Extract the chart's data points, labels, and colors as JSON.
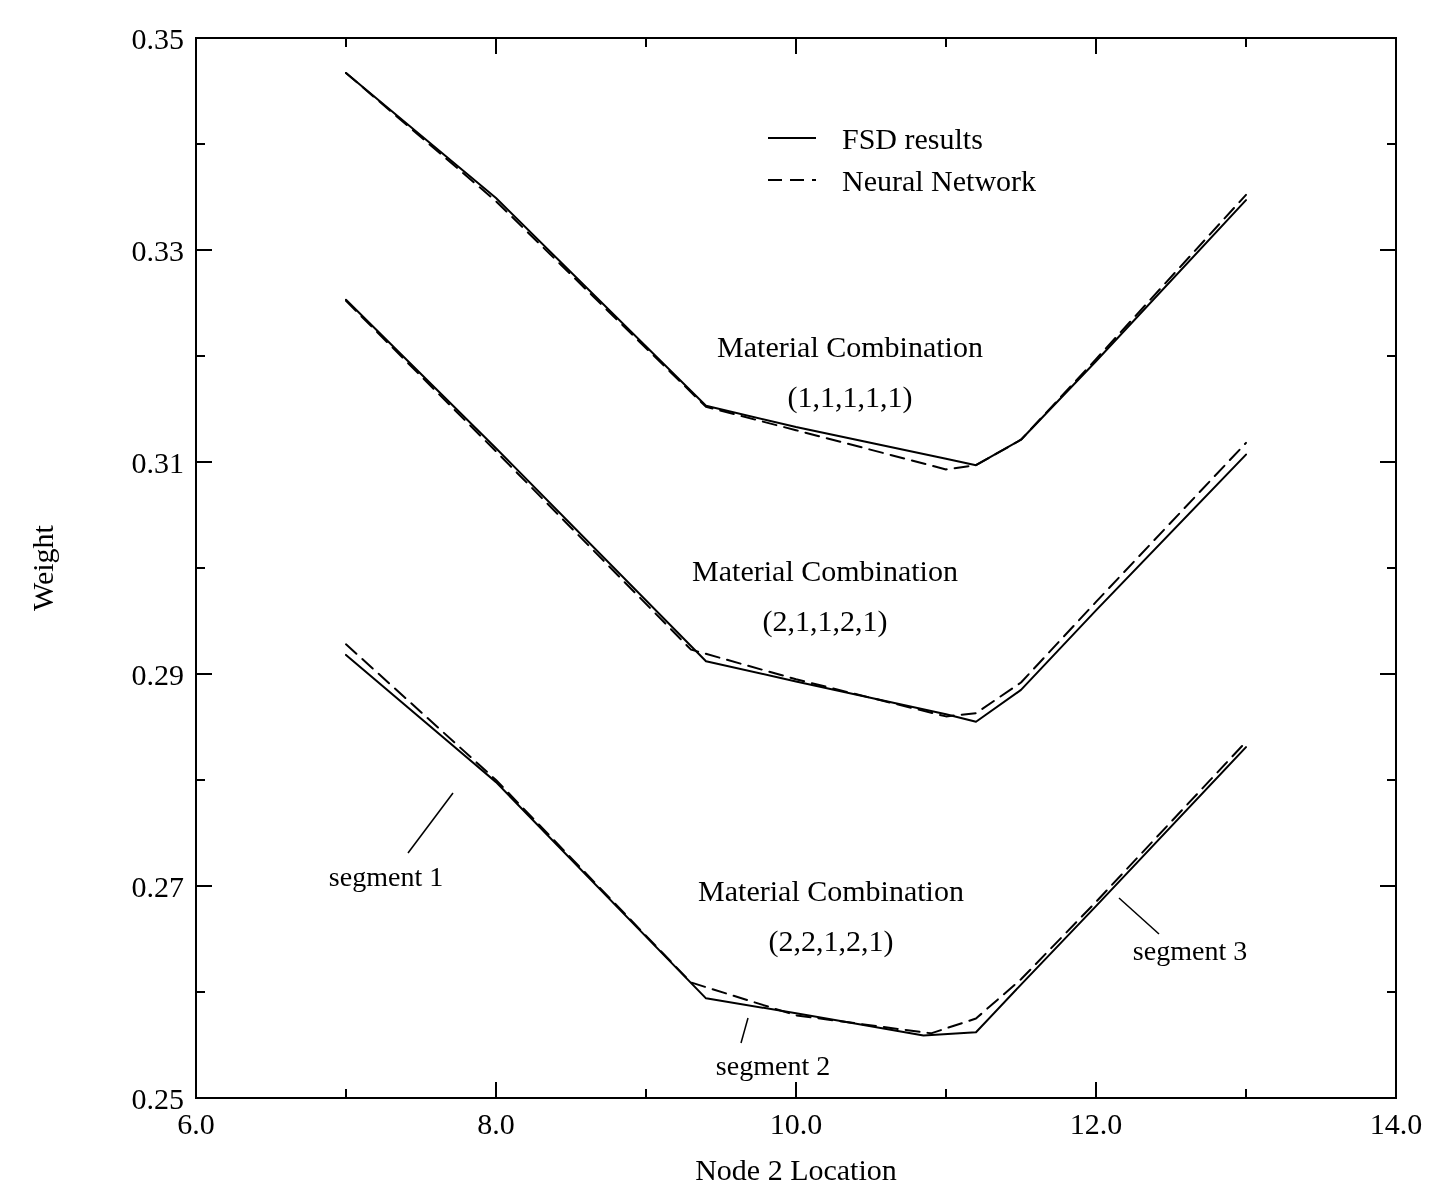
{
  "chart_data": {
    "type": "line",
    "xlabel": "Node 2 Location",
    "ylabel": "Weight",
    "xlim": [
      6,
      14
    ],
    "ylim": [
      0.25,
      0.35
    ],
    "xticks": [
      {
        "value": 6,
        "label": "6.0"
      },
      {
        "value": 7,
        "label": null
      },
      {
        "value": 8,
        "label": "8.0"
      },
      {
        "value": 9,
        "label": null
      },
      {
        "value": 10,
        "label": "10.0"
      },
      {
        "value": 11,
        "label": null
      },
      {
        "value": 12,
        "label": "12.0"
      },
      {
        "value": 13,
        "label": null
      },
      {
        "value": 14,
        "label": "14.0"
      }
    ],
    "yticks": [
      0.25,
      {
        "value": 0.26,
        "label": null
      },
      0.27,
      {
        "value": 0.28,
        "label": null
      },
      0.29,
      {
        "value": 0.3,
        "label": null
      },
      0.31,
      {
        "value": 0.32,
        "label": null
      },
      0.33,
      {
        "value": 0.34,
        "label": null
      },
      0.35
    ],
    "grid": false,
    "legend": "top right",
    "marker": "none",
    "series": [
      {
        "name": "FSD results",
        "color": "#000000",
        "line_style": "solid",
        "x": [
          7,
          8,
          9.4,
          10,
          11,
          11.2,
          11.5,
          12,
          13
        ],
        "values": [
          0.3467,
          0.3349,
          0.3153,
          0.3133,
          0.3103,
          0.3097,
          0.3121,
          0.3195,
          0.3347
        ]
      },
      {
        "name": "Neural Network",
        "color": "#000000",
        "line_style": "dashed",
        "x": [
          7,
          8,
          9.4,
          10,
          11,
          11.2,
          11.5,
          12,
          13
        ],
        "values": [
          0.3467,
          0.3346,
          0.3152,
          0.313,
          0.3093,
          0.3097,
          0.3121,
          0.3197,
          0.3352
        ]
      },
      {
        "color": "#000000",
        "line_style": "solid",
        "x": [
          7,
          8,
          9.4,
          10,
          11,
          11.2,
          11.5,
          12,
          13
        ],
        "values": [
          0.3253,
          0.3113,
          0.2912,
          0.2893,
          0.2862,
          0.2855,
          0.2885,
          0.296,
          0.3107
        ]
      },
      {
        "color": "#000000",
        "line_style": "dashed",
        "x": [
          7,
          8,
          9.3,
          10,
          11,
          11.2,
          11.5,
          12,
          13
        ],
        "values": [
          0.3252,
          0.311,
          0.2923,
          0.2895,
          0.286,
          0.2863,
          0.2892,
          0.2968,
          0.3118
        ]
      },
      {
        "color": "#000000",
        "line_style": "solid",
        "x": [
          7,
          8,
          9.4,
          10,
          10.85,
          11.2,
          11.5,
          12,
          13
        ],
        "values": [
          0.2918,
          0.2798,
          0.2594,
          0.258,
          0.2559,
          0.2562,
          0.2607,
          0.2681,
          0.2831
        ]
      },
      {
        "color": "#000000",
        "line_style": "dashed",
        "x": [
          7,
          8,
          9.3,
          10,
          10.9,
          11.2,
          11.5,
          12,
          13
        ],
        "values": [
          0.2928,
          0.28,
          0.2609,
          0.2578,
          0.2561,
          0.2575,
          0.2612,
          0.2685,
          0.2836
        ]
      }
    ],
    "annotations": [
      "Material Combination\n(1,1,1,1,1)",
      "Material Combination\n(2,1,1,2,1)",
      "Material Combination\n(2,2,1,2,1)",
      "segment 1",
      "segment 2",
      "segment 3"
    ]
  }
}
